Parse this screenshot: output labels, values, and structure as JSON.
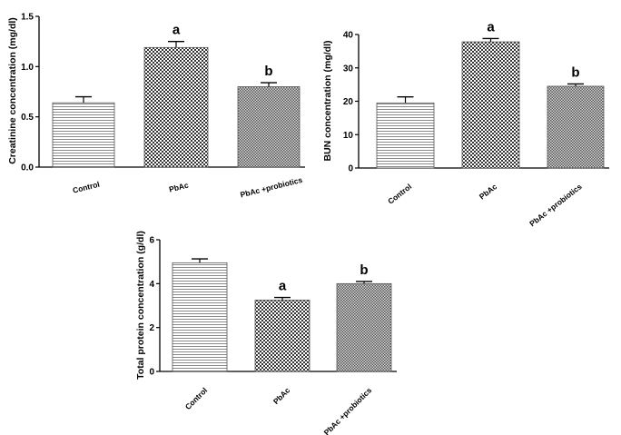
{
  "chart_data": [
    {
      "type": "bar",
      "title": "",
      "xlabel": "",
      "ylabel": "Creatinine concentration (mg/dl)",
      "ylim": [
        0,
        1.5
      ],
      "yticks": [
        "0.0",
        "0.5",
        "1.0",
        "1.5"
      ],
      "categories": [
        "Control",
        "PbAc",
        "PbAc +probiotics"
      ],
      "values": [
        0.64,
        1.19,
        0.8
      ],
      "errors": [
        0.06,
        0.06,
        0.04
      ],
      "significance": [
        "",
        "a",
        "b"
      ],
      "patterns": [
        "hlines",
        "checker",
        "dense"
      ]
    },
    {
      "type": "bar",
      "title": "",
      "xlabel": "",
      "ylabel": "BUN concentration (mg/dl)",
      "ylim": [
        0,
        40
      ],
      "yticks": [
        "0",
        "10",
        "20",
        "30",
        "40"
      ],
      "categories": [
        "Control",
        "PbAc",
        "PbAc +probiotics"
      ],
      "values": [
        19.5,
        37.8,
        24.5
      ],
      "errors": [
        1.8,
        1.0,
        0.7
      ],
      "significance": [
        "",
        "a",
        "b"
      ],
      "patterns": [
        "hlines",
        "checker",
        "dense"
      ]
    },
    {
      "type": "bar",
      "title": "",
      "xlabel": "",
      "ylabel": "Total protein concentration (g/dl)",
      "ylim": [
        0,
        6
      ],
      "yticks": [
        "0",
        "2",
        "4",
        "6"
      ],
      "categories": [
        "Control",
        "PbAc",
        "PbAc +probiotics"
      ],
      "values": [
        4.95,
        3.25,
        4.0
      ],
      "errors": [
        0.18,
        0.12,
        0.1
      ],
      "significance": [
        "",
        "a",
        "b"
      ],
      "patterns": [
        "hlines",
        "checker",
        "dense"
      ]
    }
  ]
}
